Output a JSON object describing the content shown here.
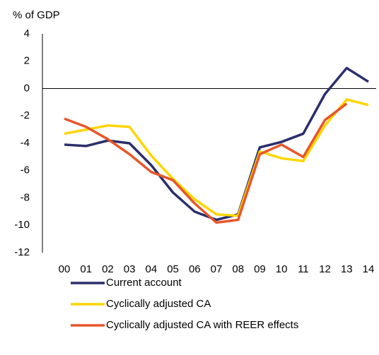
{
  "chart_data": {
    "type": "line",
    "y_axis_label": "%  of GDP",
    "categories": [
      "00",
      "01",
      "02",
      "03",
      "04",
      "05",
      "06",
      "07",
      "08",
      "09",
      "10",
      "11",
      "12",
      "13",
      "14"
    ],
    "series": [
      {
        "name": "Current account",
        "color": "#2b2e6b",
        "values": [
          -4.1,
          -4.2,
          -3.8,
          -4.0,
          -5.6,
          -7.6,
          -9.0,
          -9.6,
          -9.2,
          -4.3,
          -3.9,
          -3.3,
          -0.4,
          1.5,
          0.5
        ]
      },
      {
        "name": "Cyclically adjusted CA",
        "color": "#ffd500",
        "values": [
          -3.3,
          -3.0,
          -2.7,
          -2.8,
          -4.9,
          -6.6,
          -8.1,
          -9.2,
          -9.3,
          -4.6,
          -5.1,
          -5.3,
          -2.7,
          -0.8,
          -1.2
        ]
      },
      {
        "name": "Cyclically adjusted CA with REER effects",
        "color": "#e8562a",
        "values": [
          -2.2,
          -2.8,
          -3.7,
          -4.8,
          -6.1,
          -6.7,
          -8.4,
          -9.8,
          -9.6,
          -4.8,
          -4.1,
          -5.0,
          -2.3,
          -1.1,
          null
        ]
      }
    ],
    "ylim": [
      -12,
      4
    ],
    "yticks": [
      -12,
      -10,
      -8,
      -6,
      -4,
      -2,
      0,
      2,
      4
    ],
    "grid": false
  }
}
